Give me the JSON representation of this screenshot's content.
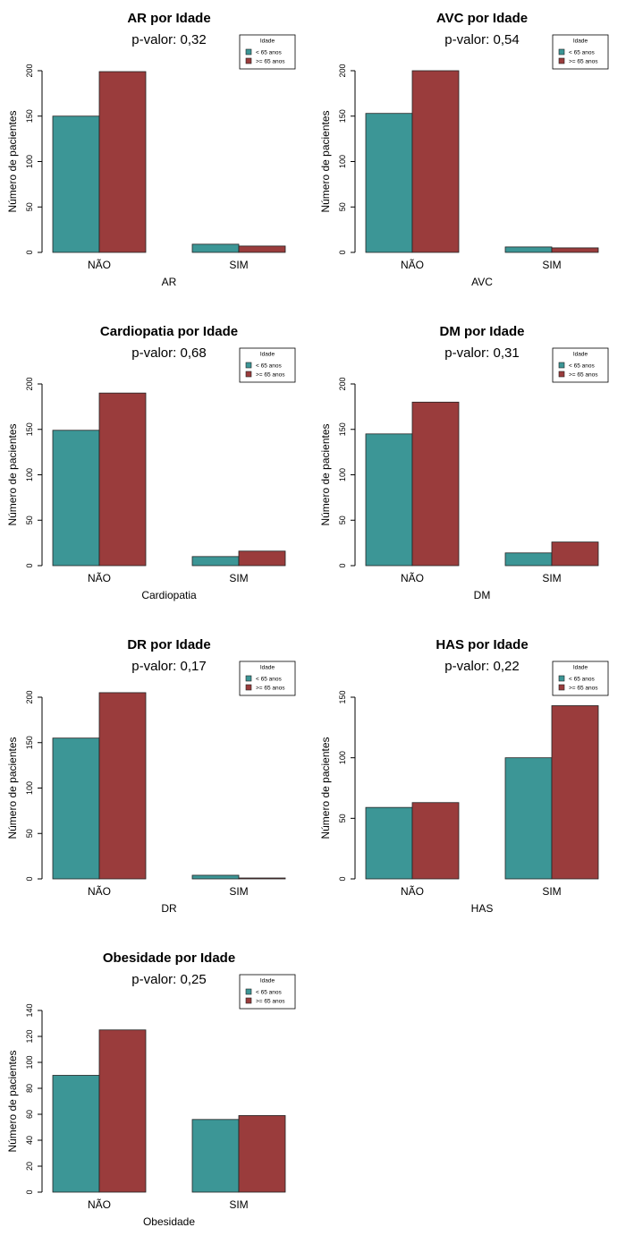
{
  "legend": {
    "title": "Idade",
    "items": [
      "< 65 anos",
      ">= 65 anos"
    ]
  },
  "colors": {
    "under_65": "#3C9696",
    "over_65": "#9A3C3C",
    "axis": "#000000"
  },
  "ylabel": "Número de pacientes",
  "chart_data": [
    {
      "type": "bar",
      "title": "AR por Idade",
      "subtitle": "p-valor: 0,32",
      "xlabel": "AR",
      "ylabel": "Número de pacientes",
      "categories": [
        "NÃO",
        "SIM"
      ],
      "series": [
        {
          "name": "< 65 anos",
          "values": [
            150,
            9
          ]
        },
        {
          "name": ">= 65 anos",
          "values": [
            199,
            7
          ]
        }
      ],
      "ylim": [
        0,
        200
      ],
      "yticks": [
        0,
        50,
        100,
        150,
        200
      ],
      "legend": "top-right"
    },
    {
      "type": "bar",
      "title": "AVC por Idade",
      "subtitle": "p-valor: 0,54",
      "xlabel": "AVC",
      "ylabel": "Número de pacientes",
      "categories": [
        "NÃO",
        "SIM"
      ],
      "series": [
        {
          "name": "< 65 anos",
          "values": [
            153,
            6
          ]
        },
        {
          "name": ">= 65 anos",
          "values": [
            200,
            5
          ]
        }
      ],
      "ylim": [
        0,
        200
      ],
      "yticks": [
        0,
        50,
        100,
        150,
        200
      ],
      "legend": "top-right"
    },
    {
      "type": "bar",
      "title": "Cardiopatia por Idade",
      "subtitle": "p-valor: 0,68",
      "xlabel": "Cardiopatia",
      "ylabel": "Número de pacientes",
      "categories": [
        "NÃO",
        "SIM"
      ],
      "series": [
        {
          "name": "< 65 anos",
          "values": [
            149,
            10
          ]
        },
        {
          "name": ">= 65 anos",
          "values": [
            190,
            16
          ]
        }
      ],
      "ylim": [
        0,
        200
      ],
      "yticks": [
        0,
        50,
        100,
        150,
        200
      ],
      "legend": "top-right"
    },
    {
      "type": "bar",
      "title": "DM por Idade",
      "subtitle": "p-valor: 0,31",
      "xlabel": "DM",
      "ylabel": "Número de pacientes",
      "categories": [
        "NÃO",
        "SIM"
      ],
      "series": [
        {
          "name": "< 65 anos",
          "values": [
            145,
            14
          ]
        },
        {
          "name": ">= 65 anos",
          "values": [
            180,
            26
          ]
        }
      ],
      "ylim": [
        0,
        200
      ],
      "yticks": [
        0,
        50,
        100,
        150,
        200
      ],
      "legend": "top-right"
    },
    {
      "type": "bar",
      "title": "DR por Idade",
      "subtitle": "p-valor: 0,17",
      "xlabel": "DR",
      "ylabel": "Número de pacientes",
      "categories": [
        "NÃO",
        "SIM"
      ],
      "series": [
        {
          "name": "< 65 anos",
          "values": [
            155,
            4
          ]
        },
        {
          "name": ">= 65 anos",
          "values": [
            205,
            1
          ]
        }
      ],
      "ylim": [
        0,
        205
      ],
      "yticks": [
        0,
        50,
        100,
        150,
        200
      ],
      "legend": "top-right"
    },
    {
      "type": "bar",
      "title": "HAS por Idade",
      "subtitle": "p-valor: 0,22",
      "xlabel": "HAS",
      "ylabel": "Número de pacientes",
      "categories": [
        "NÃO",
        "SIM"
      ],
      "series": [
        {
          "name": "< 65 anos",
          "values": [
            59,
            100
          ]
        },
        {
          "name": ">= 65 anos",
          "values": [
            63,
            143
          ]
        }
      ],
      "ylim": [
        0,
        150
      ],
      "yticks": [
        0,
        50,
        100,
        150
      ],
      "legend": "top-right"
    },
    {
      "type": "bar",
      "title": "Obesidade por Idade",
      "subtitle": "p-valor: 0,25",
      "xlabel": "Obesidade",
      "ylabel": "Número de pacientes",
      "categories": [
        "NÃO",
        "SIM"
      ],
      "series": [
        {
          "name": "< 65 anos",
          "values": [
            90,
            56
          ]
        },
        {
          "name": ">= 65 anos",
          "values": [
            125,
            59
          ]
        }
      ],
      "ylim": [
        0,
        140
      ],
      "yticks": [
        0,
        20,
        40,
        60,
        80,
        100,
        120,
        140
      ],
      "legend": "top-right"
    }
  ]
}
